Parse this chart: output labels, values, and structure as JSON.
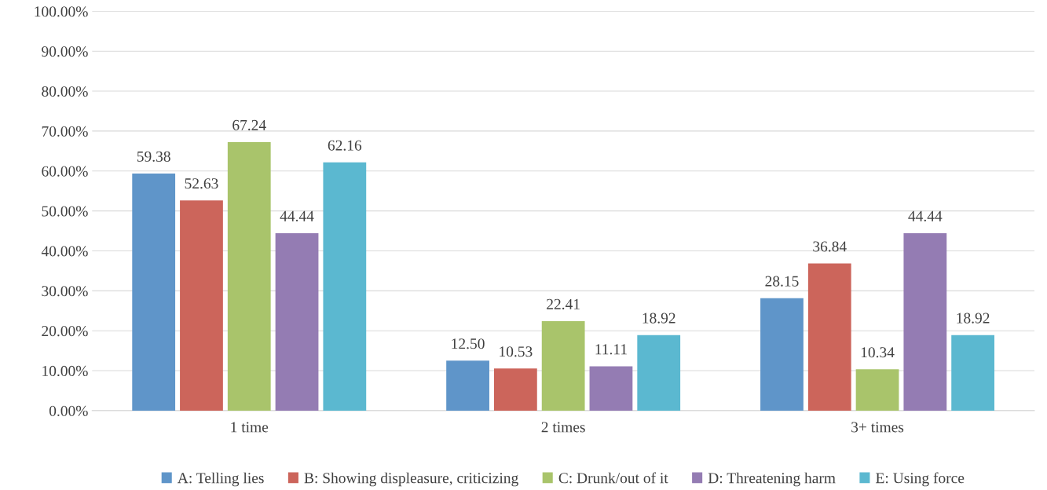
{
  "chart_data": {
    "type": "bar",
    "categories": [
      "1 time",
      "2 times",
      "3+ times"
    ],
    "series": [
      {
        "name": "A: Telling lies",
        "color": "#5f95c9",
        "values": [
          59.38,
          12.5,
          28.15
        ],
        "value_labels": [
          "59.38",
          "12.50",
          "28.15"
        ]
      },
      {
        "name": "B: Showing displeasure, criticizing",
        "color": "#cc655b",
        "values": [
          52.63,
          10.53,
          36.84
        ],
        "value_labels": [
          "52.63",
          "10.53",
          "36.84"
        ]
      },
      {
        "name": "C: Drunk/out of it",
        "color": "#a9c46b",
        "values": [
          67.24,
          22.41,
          10.34
        ],
        "value_labels": [
          "67.24",
          "22.41",
          "10.34"
        ]
      },
      {
        "name": "D: Threatening harm",
        "color": "#947cb3",
        "values": [
          44.44,
          11.11,
          44.44
        ],
        "value_labels": [
          "44.44",
          "11.11",
          "44.44"
        ]
      },
      {
        "name": "E: Using force",
        "color": "#5bb8d0",
        "values": [
          62.16,
          18.92,
          18.92
        ],
        "value_labels": [
          "62.16",
          "18.92",
          "18.92"
        ]
      }
    ],
    "ylim": [
      0,
      100
    ],
    "yticks": [
      {
        "value": 0,
        "label": "0.00%"
      },
      {
        "value": 10,
        "label": "10.00%"
      },
      {
        "value": 20,
        "label": "20.00%"
      },
      {
        "value": 30,
        "label": "30.00%"
      },
      {
        "value": 40,
        "label": "40.00%"
      },
      {
        "value": 50,
        "label": "50.00%"
      },
      {
        "value": 60,
        "label": "60.00%"
      },
      {
        "value": 70,
        "label": "70.00%"
      },
      {
        "value": 80,
        "label": "80.00%"
      },
      {
        "value": 90,
        "label": "90.00%"
      },
      {
        "value": 100,
        "label": "100.00%"
      }
    ],
    "grid": "y",
    "legend": "bottom"
  }
}
